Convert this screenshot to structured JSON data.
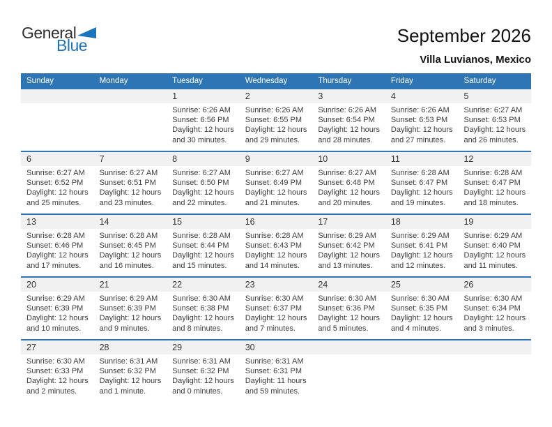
{
  "logo": {
    "line1": "General",
    "line2": "Blue"
  },
  "header": {
    "title": "September 2026",
    "location": "Villa Luvianos, Mexico"
  },
  "colors": {
    "header_blue": "#2E75B6",
    "band_gray": "#F1F1F1",
    "logo_blue": "#1C75BC"
  },
  "weekdays": [
    "Sunday",
    "Monday",
    "Tuesday",
    "Wednesday",
    "Thursday",
    "Friday",
    "Saturday"
  ],
  "weeks": [
    [
      null,
      null,
      {
        "day": "1",
        "lines": [
          "Sunrise: 6:26 AM",
          "Sunset: 6:56 PM",
          "Daylight: 12 hours",
          "and 30 minutes."
        ]
      },
      {
        "day": "2",
        "lines": [
          "Sunrise: 6:26 AM",
          "Sunset: 6:55 PM",
          "Daylight: 12 hours",
          "and 29 minutes."
        ]
      },
      {
        "day": "3",
        "lines": [
          "Sunrise: 6:26 AM",
          "Sunset: 6:54 PM",
          "Daylight: 12 hours",
          "and 28 minutes."
        ]
      },
      {
        "day": "4",
        "lines": [
          "Sunrise: 6:26 AM",
          "Sunset: 6:53 PM",
          "Daylight: 12 hours",
          "and 27 minutes."
        ]
      },
      {
        "day": "5",
        "lines": [
          "Sunrise: 6:27 AM",
          "Sunset: 6:53 PM",
          "Daylight: 12 hours",
          "and 26 minutes."
        ]
      }
    ],
    [
      {
        "day": "6",
        "lines": [
          "Sunrise: 6:27 AM",
          "Sunset: 6:52 PM",
          "Daylight: 12 hours",
          "and 25 minutes."
        ]
      },
      {
        "day": "7",
        "lines": [
          "Sunrise: 6:27 AM",
          "Sunset: 6:51 PM",
          "Daylight: 12 hours",
          "and 23 minutes."
        ]
      },
      {
        "day": "8",
        "lines": [
          "Sunrise: 6:27 AM",
          "Sunset: 6:50 PM",
          "Daylight: 12 hours",
          "and 22 minutes."
        ]
      },
      {
        "day": "9",
        "lines": [
          "Sunrise: 6:27 AM",
          "Sunset: 6:49 PM",
          "Daylight: 12 hours",
          "and 21 minutes."
        ]
      },
      {
        "day": "10",
        "lines": [
          "Sunrise: 6:27 AM",
          "Sunset: 6:48 PM",
          "Daylight: 12 hours",
          "and 20 minutes."
        ]
      },
      {
        "day": "11",
        "lines": [
          "Sunrise: 6:28 AM",
          "Sunset: 6:47 PM",
          "Daylight: 12 hours",
          "and 19 minutes."
        ]
      },
      {
        "day": "12",
        "lines": [
          "Sunrise: 6:28 AM",
          "Sunset: 6:47 PM",
          "Daylight: 12 hours",
          "and 18 minutes."
        ]
      }
    ],
    [
      {
        "day": "13",
        "lines": [
          "Sunrise: 6:28 AM",
          "Sunset: 6:46 PM",
          "Daylight: 12 hours",
          "and 17 minutes."
        ]
      },
      {
        "day": "14",
        "lines": [
          "Sunrise: 6:28 AM",
          "Sunset: 6:45 PM",
          "Daylight: 12 hours",
          "and 16 minutes."
        ]
      },
      {
        "day": "15",
        "lines": [
          "Sunrise: 6:28 AM",
          "Sunset: 6:44 PM",
          "Daylight: 12 hours",
          "and 15 minutes."
        ]
      },
      {
        "day": "16",
        "lines": [
          "Sunrise: 6:28 AM",
          "Sunset: 6:43 PM",
          "Daylight: 12 hours",
          "and 14 minutes."
        ]
      },
      {
        "day": "17",
        "lines": [
          "Sunrise: 6:29 AM",
          "Sunset: 6:42 PM",
          "Daylight: 12 hours",
          "and 13 minutes."
        ]
      },
      {
        "day": "18",
        "lines": [
          "Sunrise: 6:29 AM",
          "Sunset: 6:41 PM",
          "Daylight: 12 hours",
          "and 12 minutes."
        ]
      },
      {
        "day": "19",
        "lines": [
          "Sunrise: 6:29 AM",
          "Sunset: 6:40 PM",
          "Daylight: 12 hours",
          "and 11 minutes."
        ]
      }
    ],
    [
      {
        "day": "20",
        "lines": [
          "Sunrise: 6:29 AM",
          "Sunset: 6:39 PM",
          "Daylight: 12 hours",
          "and 10 minutes."
        ]
      },
      {
        "day": "21",
        "lines": [
          "Sunrise: 6:29 AM",
          "Sunset: 6:39 PM",
          "Daylight: 12 hours",
          "and 9 minutes."
        ]
      },
      {
        "day": "22",
        "lines": [
          "Sunrise: 6:30 AM",
          "Sunset: 6:38 PM",
          "Daylight: 12 hours",
          "and 8 minutes."
        ]
      },
      {
        "day": "23",
        "lines": [
          "Sunrise: 6:30 AM",
          "Sunset: 6:37 PM",
          "Daylight: 12 hours",
          "and 7 minutes."
        ]
      },
      {
        "day": "24",
        "lines": [
          "Sunrise: 6:30 AM",
          "Sunset: 6:36 PM",
          "Daylight: 12 hours",
          "and 5 minutes."
        ]
      },
      {
        "day": "25",
        "lines": [
          "Sunrise: 6:30 AM",
          "Sunset: 6:35 PM",
          "Daylight: 12 hours",
          "and 4 minutes."
        ]
      },
      {
        "day": "26",
        "lines": [
          "Sunrise: 6:30 AM",
          "Sunset: 6:34 PM",
          "Daylight: 12 hours",
          "and 3 minutes."
        ]
      }
    ],
    [
      {
        "day": "27",
        "lines": [
          "Sunrise: 6:30 AM",
          "Sunset: 6:33 PM",
          "Daylight: 12 hours",
          "and 2 minutes."
        ]
      },
      {
        "day": "28",
        "lines": [
          "Sunrise: 6:31 AM",
          "Sunset: 6:32 PM",
          "Daylight: 12 hours",
          "and 1 minute."
        ]
      },
      {
        "day": "29",
        "lines": [
          "Sunrise: 6:31 AM",
          "Sunset: 6:32 PM",
          "Daylight: 12 hours",
          "and 0 minutes."
        ]
      },
      {
        "day": "30",
        "lines": [
          "Sunrise: 6:31 AM",
          "Sunset: 6:31 PM",
          "Daylight: 11 hours",
          "and 59 minutes."
        ]
      },
      null,
      null,
      null
    ]
  ]
}
